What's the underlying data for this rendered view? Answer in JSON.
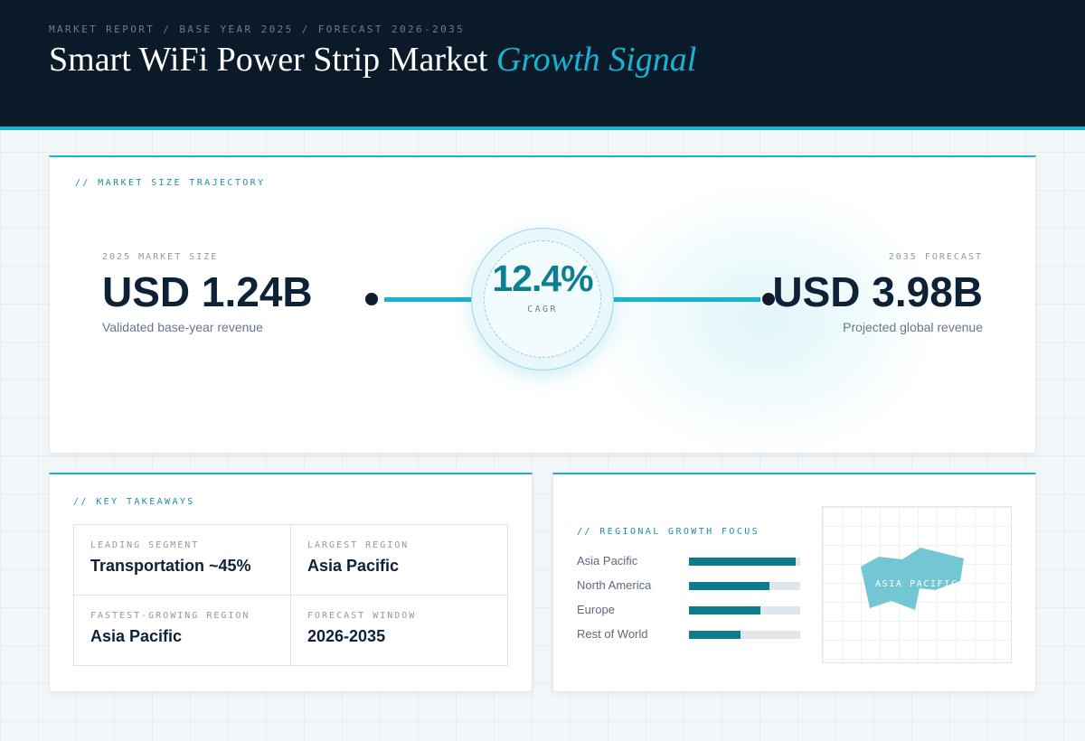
{
  "header": {
    "eyebrow": "MARKET REPORT / BASE YEAR 2025 / FORECAST 2026-2035",
    "title_main": "Smart WiFi Power Strip Market",
    "title_accent": "Growth Signal"
  },
  "trajectory": {
    "section_label": "// MARKET SIZE TRAJECTORY",
    "start": {
      "label": "2025 MARKET SIZE",
      "value": "USD 1.24B",
      "caption": "Validated base-year revenue"
    },
    "cagr": {
      "value": "12.4%",
      "label": "CAGR"
    },
    "end": {
      "label": "2035 FORECAST",
      "value": "USD 3.98B",
      "caption": "Projected global revenue"
    }
  },
  "takeaways": {
    "section_label": "// KEY TAKEAWAYS",
    "items": [
      {
        "label": "LEADING SEGMENT",
        "value": "Transportation ~45%"
      },
      {
        "label": "LARGEST REGION",
        "value": "Asia Pacific"
      },
      {
        "label": "FASTEST-GROWING REGION",
        "value": "Asia Pacific"
      },
      {
        "label": "FORECAST WINDOW",
        "value": "2026-2035"
      }
    ]
  },
  "regional": {
    "section_label": "// REGIONAL GROWTH FOCUS",
    "bars": [
      {
        "name": "Asia Pacific",
        "fraction": 0.96
      },
      {
        "name": "North America",
        "fraction": 0.72
      },
      {
        "name": "Europe",
        "fraction": 0.64
      },
      {
        "name": "Rest of World",
        "fraction": 0.46
      }
    ],
    "map_label": "ASIA PACIFIC",
    "map_color": "#6cc3d2",
    "bar_color": "#0d7a8e"
  },
  "colors": {
    "accent": "#16b4d1",
    "header_bg": "#0b1a28",
    "cagr_text": "#0e7f92"
  }
}
